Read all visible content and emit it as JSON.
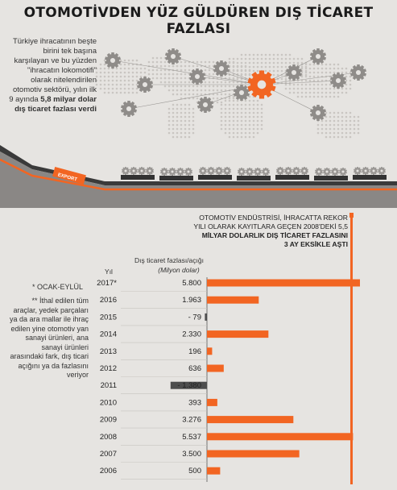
{
  "title": "OTOMOTİVDEN YÜZ GÜLDÜREN DIŞ TİCARET FAZLASI",
  "intro": {
    "text": "Türkiye ihracatının beşte birini tek başına karşılayan ve bu yüzden \"ihracatın lokomotifi\" olarak nitelendirilen otomotiv sektörü, yılın ilk 9 ayında",
    "highlight": "5,8 milyar dolar dış ticaret fazlası verdi"
  },
  "export_label": "EXPORT",
  "callout": {
    "line1": "OTOMOTİV ENDÜSTRİSİ, İHRACATTA REKOR",
    "line2": "YILI OLARAK KAYITLARA GEÇEN 2008'DEKİ 5,5",
    "line3": "MİLYAR DOLARLIK DIŞ TİCARET FAZLASINI",
    "line4": "3 AY EKSİKLE AŞTI"
  },
  "notes": {
    "star": "* OCAK-EYLÜL",
    "dstar": "** İthal edilen tüm araçlar, yedek parçaları ya da ara mallar ile ihraç edilen yine otomotiv yan sanayi ürünleri, ana sanayi ürünleri arasındaki fark, dış ticari açığını ya da fazlasını veriyor"
  },
  "colors": {
    "accent": "#f26522",
    "negative": "#4d4d4d",
    "text": "#222222"
  },
  "chart_data": {
    "type": "bar",
    "orientation": "horizontal",
    "col_year_label": "Yıl",
    "col_value_label": "Dış ticaret fazlası/açığı",
    "col_value_unit": "(Milyon dolar)",
    "categories": [
      "2017*",
      "2016",
      "2015",
      "2014",
      "2013",
      "2012",
      "2011",
      "2010",
      "2009",
      "2008",
      "2007",
      "2006"
    ],
    "value_labels": [
      "5.800",
      "1.963",
      "- 79",
      "2.330",
      "196",
      "636",
      "- 1.380",
      "393",
      "3.276",
      "5.537",
      "3.500",
      "500"
    ],
    "values": [
      5800,
      1963,
      -79,
      2330,
      196,
      636,
      -1380,
      393,
      3276,
      5537,
      3500,
      500
    ],
    "xlim": [
      -1500,
      6000
    ],
    "grid": false
  }
}
